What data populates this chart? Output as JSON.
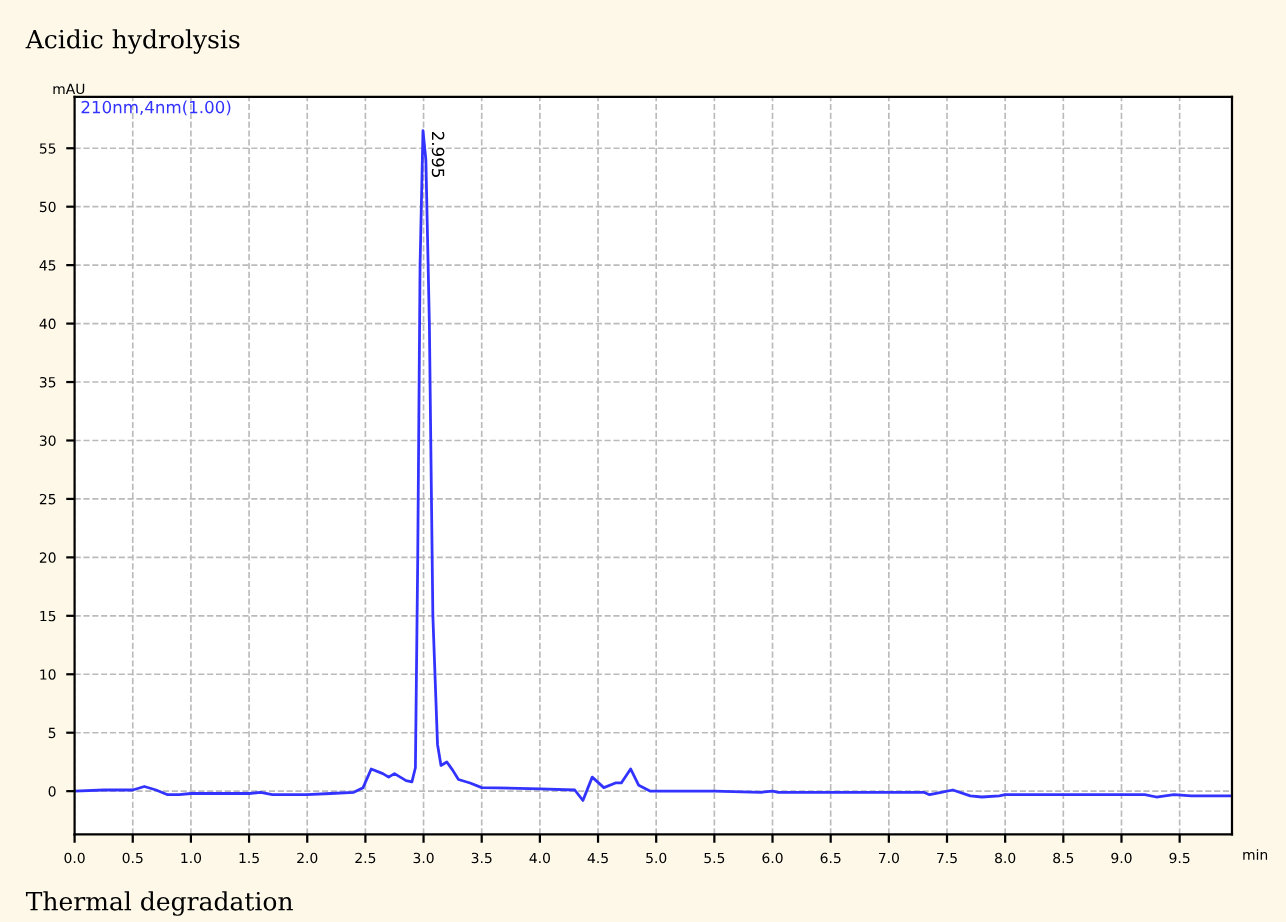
{
  "chart_data": {
    "type": "line",
    "title": "Acidic hydrolysis",
    "ylabel": "mAU",
    "xlabel": "min",
    "annotations": [
      "210nm,4nm(1.00)",
      {
        "text": "2.995",
        "x": 2.995,
        "y": 56.5
      },
      "Thermal degradation"
    ],
    "x": [
      0,
      0.25,
      0.5,
      0.6,
      0.7,
      0.8,
      0.9,
      1.0,
      1.5,
      1.6,
      1.7,
      2.0,
      2.2,
      2.4,
      2.48,
      2.55,
      2.65,
      2.7,
      2.75,
      2.85,
      2.9,
      2.93,
      2.95,
      2.97,
      2.995,
      3.02,
      3.05,
      3.08,
      3.12,
      3.15,
      3.2,
      3.25,
      3.3,
      3.4,
      3.5,
      4.0,
      4.3,
      4.37,
      4.45,
      4.55,
      4.65,
      4.7,
      4.78,
      4.85,
      4.95,
      5.5,
      5.9,
      6.0,
      6.05,
      7.3,
      7.35,
      7.45,
      7.55,
      7.7,
      7.8,
      7.95,
      8.0,
      9.2,
      9.3,
      9.45,
      9.6,
      9.95
    ],
    "series": [
      {
        "color": "#3333ff",
        "values": [
          0,
          0.1,
          0.1,
          0.4,
          0.1,
          -0.3,
          -0.3,
          -0.2,
          -0.2,
          -0.1,
          -0.3,
          -0.3,
          -0.2,
          -0.1,
          0.3,
          1.9,
          1.5,
          1.2,
          1.5,
          0.9,
          0.8,
          2,
          20,
          45,
          56.5,
          54,
          40,
          15,
          4,
          2.2,
          2.5,
          1.8,
          1.0,
          0.7,
          0.3,
          0.2,
          0.1,
          -0.8,
          1.2,
          0.3,
          0.7,
          0.7,
          1.9,
          0.5,
          0.0,
          0.0,
          -0.1,
          0.0,
          -0.1,
          -0.1,
          -0.3,
          -0.1,
          0.1,
          -0.4,
          -0.5,
          -0.4,
          -0.3,
          -0.3,
          -0.5,
          -0.3,
          -0.4,
          -0.4
        ]
      }
    ],
    "xlim": [
      0,
      9.95
    ],
    "ylim": [
      -3.7,
      59.4
    ],
    "xticks": [
      {
        "value": 0,
        "label": "0.0"
      },
      {
        "value": 0.5,
        "label": "0.5"
      },
      {
        "value": 1,
        "label": "1.0"
      },
      {
        "value": 1.5,
        "label": "1.5"
      },
      {
        "value": 2,
        "label": "2.0"
      },
      {
        "value": 2.5,
        "label": "2.5"
      },
      {
        "value": 3,
        "label": "3.0"
      },
      {
        "value": 3.5,
        "label": "3.5"
      },
      {
        "value": 4,
        "label": "4.0"
      },
      {
        "value": 4.5,
        "label": "4.5"
      },
      {
        "value": 5,
        "label": "5.0"
      },
      {
        "value": 5.5,
        "label": "5.5"
      },
      {
        "value": 6,
        "label": "6.0"
      },
      {
        "value": 6.5,
        "label": "6.5"
      },
      {
        "value": 7,
        "label": "7.0"
      },
      {
        "value": 7.5,
        "label": "7.5"
      },
      {
        "value": 8,
        "label": "8.0"
      },
      {
        "value": 8.5,
        "label": "8.5"
      },
      {
        "value": 9,
        "label": "9.0"
      },
      {
        "value": 9.5,
        "label": "9.5"
      }
    ],
    "yticks": [
      0,
      5,
      10,
      15,
      20,
      25,
      30,
      35,
      40,
      45,
      50,
      55
    ],
    "grid": true,
    "legend": false,
    "marker": "none",
    "line_style": "solid"
  }
}
